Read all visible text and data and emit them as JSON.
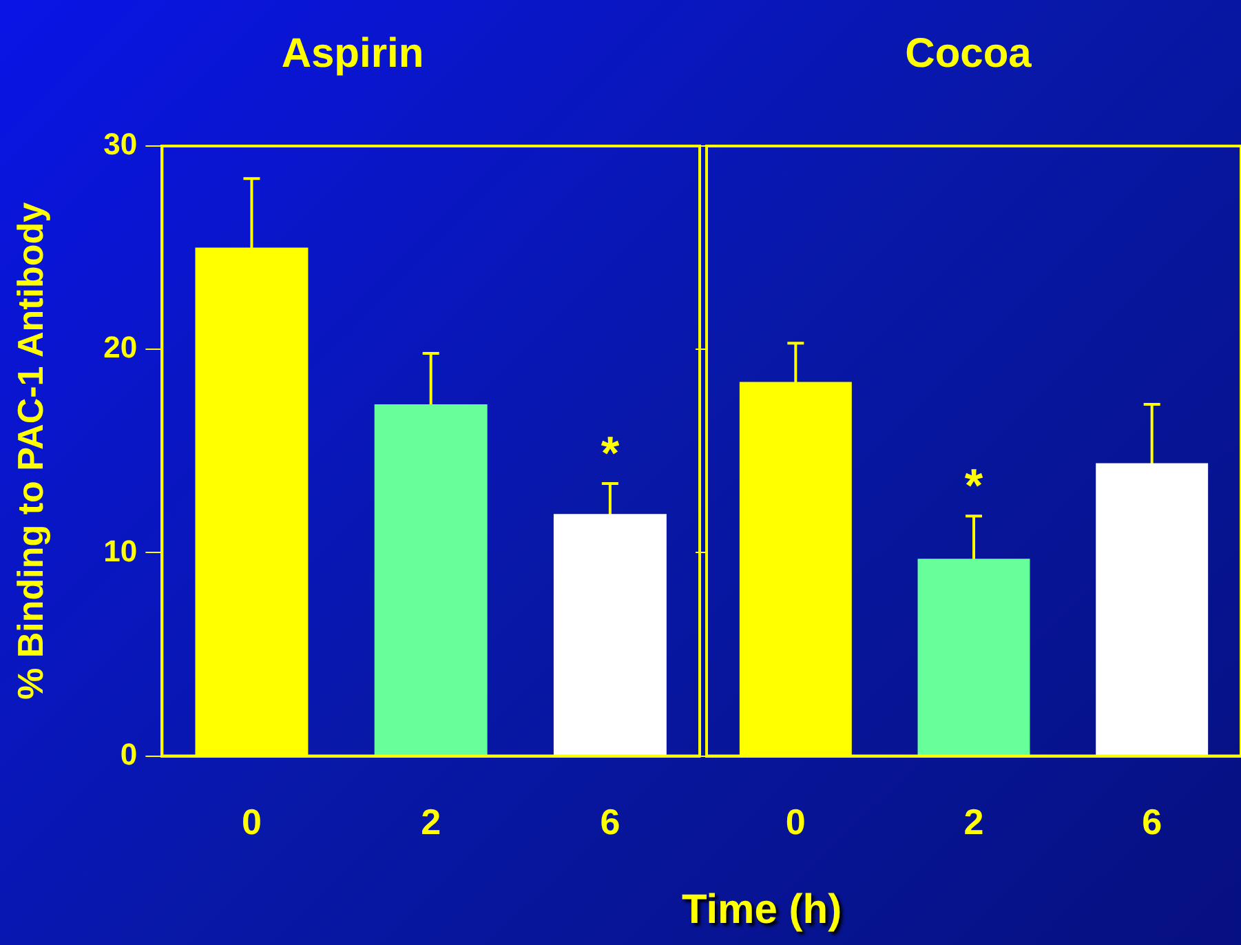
{
  "chart_data": [
    {
      "type": "bar",
      "title": "Aspirin",
      "ylabel": "% Binding to PAC-1 Antibody",
      "xlabel": "Time (h)",
      "categories": [
        "0",
        "2",
        "6"
      ],
      "values": [
        25,
        17.3,
        11.9
      ],
      "colors": [
        "#ffff00",
        "#66ff99",
        "#ffffff"
      ],
      "errors": [
        3.4,
        2.5,
        1.5
      ],
      "ylim": [
        0,
        30
      ],
      "yticks": [
        0,
        10,
        20,
        30
      ],
      "grid": false,
      "annotations": [
        {
          "text": "*",
          "x": "6",
          "y": 11.9
        }
      ]
    },
    {
      "type": "bar",
      "title": "Cocoa",
      "categories": [
        "0",
        "2",
        "6"
      ],
      "values": [
        18.4,
        9.7,
        14.4
      ],
      "colors": [
        "#ffff00",
        "#66ff99",
        "#ffffff"
      ],
      "errors": [
        1.9,
        2.1,
        2.9
      ],
      "ylim": [
        0,
        30
      ],
      "yticks": [
        0,
        10,
        20,
        30
      ],
      "grid": false,
      "tick_labels": "x",
      "annotations": [
        {
          "text": "*",
          "x": "2",
          "y": 9.7
        }
      ]
    }
  ]
}
